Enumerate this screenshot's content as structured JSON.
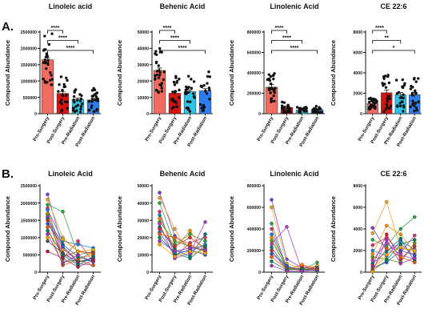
{
  "panel_labels": [
    "A.",
    "B."
  ],
  "colors": {
    "pre_surgery": "#f26b5f",
    "post_surgery": "#d7120f",
    "pre_radiation": "#2ec4e8",
    "post_radiation": "#2d7ff0",
    "dot": "#111111",
    "sig_line": "#000000"
  },
  "chart_data": [
    {
      "type": "bar",
      "title": "Linoleic acid",
      "ylabel": "Compound Abundance",
      "categories": [
        "Pre-Surgery",
        "Post-Surgery",
        "Pre-Radiation",
        "Post-Radiation"
      ],
      "values": [
        1650000,
        620000,
        430000,
        420000
      ],
      "error": [
        60000,
        60000,
        45000,
        50000
      ],
      "ylim": [
        0,
        2500000
      ],
      "yticks": [
        "0",
        "500000",
        "1000000",
        "1500000",
        "2000000",
        "2500000"
      ],
      "significance": [
        {
          "from": 0,
          "to": 1,
          "label": "****"
        },
        {
          "from": 0,
          "to": 2,
          "label": "****"
        },
        {
          "from": 0,
          "to": 3,
          "label": "****"
        }
      ]
    },
    {
      "type": "bar",
      "title": "Behenic Acid",
      "ylabel": "Compound Abundance",
      "categories": [
        "Pre-Surgery",
        "Post-Surgery",
        "Pre-Radiation",
        "Post-Radiation"
      ],
      "values": [
        26500,
        12500,
        13500,
        14000
      ],
      "error": [
        1500,
        1000,
        1000,
        1300
      ],
      "ylim": [
        0,
        50000
      ],
      "yticks": [
        "0",
        "10000",
        "20000",
        "30000",
        "40000",
        "50000"
      ],
      "significance": [
        {
          "from": 0,
          "to": 1,
          "label": "****"
        },
        {
          "from": 0,
          "to": 2,
          "label": "****"
        },
        {
          "from": 0,
          "to": 3,
          "label": "****"
        }
      ]
    },
    {
      "type": "bar",
      "title": "Linolenic Acid",
      "ylabel": "Compound Abundance",
      "categories": [
        "Pre-Surgery",
        "Post-Surgery",
        "Pre-Radiation",
        "Post-Radiation"
      ],
      "values": [
        260000,
        60000,
        35000,
        40000
      ],
      "error": [
        25000,
        15000,
        6000,
        8000
      ],
      "ylim": [
        0,
        800000
      ],
      "yticks": [
        "0",
        "200000",
        "400000",
        "600000",
        "800000"
      ],
      "significance": [
        {
          "from": 0,
          "to": 1,
          "label": "****"
        },
        {
          "from": 0,
          "to": 2,
          "label": "****"
        },
        {
          "from": 0,
          "to": 3,
          "label": "****"
        }
      ]
    },
    {
      "type": "bar",
      "title": "CE 22:6",
      "ylabel": "Compound Abundance",
      "categories": [
        "Pre-Surgery",
        "Post-Surgery",
        "Pre-Radiation",
        "Post-Radiation"
      ],
      "values": [
        1000,
        2050,
        1850,
        1850
      ],
      "error": [
        200,
        280,
        220,
        260
      ],
      "ylim": [
        0,
        8000
      ],
      "yticks": [
        "0",
        "2000",
        "4000",
        "6000",
        "8000"
      ],
      "significance": [
        {
          "from": 0,
          "to": 1,
          "label": "****"
        },
        {
          "from": 0,
          "to": 2,
          "label": "**"
        },
        {
          "from": 0,
          "to": 3,
          "label": "*"
        }
      ]
    },
    {
      "type": "line",
      "title": "Linoleic Acid",
      "ylabel": "Compound Abundance",
      "categories": [
        "Pre-Surgery",
        "Post-Surgery",
        "Pre-Radiation",
        "Post-Radiation"
      ],
      "ylim": [
        0,
        2500000
      ],
      "yticks": [
        "0",
        "500000",
        "1000000",
        "1500000",
        "2000000",
        "2500000"
      ],
      "series": [
        {
          "values": [
            2250000,
            700000,
            300000,
            400000
          ]
        },
        {
          "values": [
            2100000,
            1000000,
            600000,
            500000
          ]
        },
        {
          "values": [
            1950000,
            1750000,
            500000,
            600000
          ]
        },
        {
          "values": [
            1850000,
            400000,
            900000,
            300000
          ]
        },
        {
          "values": [
            1800000,
            900000,
            800000,
            700000
          ]
        },
        {
          "values": [
            1700000,
            650000,
            400000,
            500000
          ]
        },
        {
          "values": [
            1650000,
            300000,
            350000,
            600000
          ]
        },
        {
          "values": [
            1600000,
            550000,
            250000,
            200000
          ]
        },
        {
          "values": [
            1550000,
            800000,
            450000,
            300000
          ]
        },
        {
          "values": [
            1500000,
            450000,
            600000,
            550000
          ]
        },
        {
          "values": [
            1400000,
            750000,
            300000,
            350000
          ]
        },
        {
          "values": [
            1300000,
            200000,
            350000,
            200000
          ]
        },
        {
          "values": [
            1200000,
            500000,
            200000,
            450000
          ]
        },
        {
          "values": [
            1100000,
            250000,
            500000,
            300000
          ]
        },
        {
          "values": [
            1000000,
            950000,
            600000,
            650000
          ]
        },
        {
          "values": [
            900000,
            550000,
            300000,
            400000
          ]
        },
        {
          "values": [
            600000,
            400000,
            150000,
            350000
          ]
        }
      ]
    },
    {
      "type": "line",
      "title": "Behenic Acid",
      "ylabel": "Compound Abundance",
      "categories": [
        "Pre-Surgery",
        "Post-Surgery",
        "Pre-Radiation",
        "Post-Radiation"
      ],
      "ylim": [
        0,
        50000
      ],
      "yticks": [
        "0",
        "10000",
        "20000",
        "30000",
        "40000",
        "50000"
      ],
      "series": [
        {
          "values": [
            46000,
            21000,
            14000,
            15000
          ]
        },
        {
          "values": [
            43000,
            25000,
            10000,
            13000
          ]
        },
        {
          "values": [
            40000,
            16000,
            22000,
            18000
          ]
        },
        {
          "values": [
            35000,
            9000,
            17000,
            20000
          ]
        },
        {
          "values": [
            33000,
            12000,
            12000,
            16000
          ]
        },
        {
          "values": [
            31000,
            14000,
            24000,
            11000
          ]
        },
        {
          "values": [
            29000,
            18000,
            15000,
            12000
          ]
        },
        {
          "values": [
            28000,
            8000,
            11000,
            29000
          ]
        },
        {
          "values": [
            26000,
            13000,
            9000,
            22000
          ]
        },
        {
          "values": [
            25000,
            15000,
            20000,
            14000
          ]
        },
        {
          "values": [
            23000,
            10000,
            13000,
            10000
          ]
        },
        {
          "values": [
            22000,
            20000,
            16000,
            12000
          ]
        },
        {
          "values": [
            20000,
            11000,
            8000,
            15000
          ]
        },
        {
          "values": [
            18000,
            12000,
            14000,
            13000
          ]
        },
        {
          "values": [
            16000,
            9000,
            12000,
            11000
          ]
        }
      ]
    },
    {
      "type": "line",
      "title": "Linolenic Acid",
      "ylabel": "Compound Abundance",
      "categories": [
        "Pre-Surgery",
        "Post-Surgery",
        "Pre-Radiation",
        "Post-Radiation"
      ],
      "ylim": [
        0,
        800000
      ],
      "yticks": [
        "0",
        "200000",
        "400000",
        "600000",
        "800000"
      ],
      "series": [
        {
          "values": [
            670000,
            120000,
            40000,
            50000
          ]
        },
        {
          "values": [
            600000,
            80000,
            30000,
            60000
          ]
        },
        {
          "values": [
            450000,
            40000,
            20000,
            90000
          ]
        },
        {
          "values": [
            400000,
            30000,
            60000,
            30000
          ]
        },
        {
          "values": [
            350000,
            50000,
            20000,
            40000
          ]
        },
        {
          "values": [
            320000,
            20000,
            70000,
            30000
          ]
        },
        {
          "values": [
            290000,
            40000,
            30000,
            20000
          ]
        },
        {
          "values": [
            260000,
            420000,
            10000,
            20000
          ]
        },
        {
          "values": [
            230000,
            30000,
            20000,
            40000
          ]
        },
        {
          "values": [
            200000,
            20000,
            40000,
            30000
          ]
        },
        {
          "values": [
            170000,
            60000,
            10000,
            20000
          ]
        },
        {
          "values": [
            140000,
            30000,
            20000,
            30000
          ]
        },
        {
          "values": [
            100000,
            20000,
            30000,
            10000
          ]
        },
        {
          "values": [
            60000,
            10000,
            10000,
            20000
          ]
        }
      ]
    },
    {
      "type": "line",
      "title": "CE 22:6",
      "ylabel": "Compound Abundance",
      "categories": [
        "Pre-Surgery",
        "Post-Surgery",
        "Pre-Radiation",
        "Post-Radiation"
      ],
      "ylim": [
        0,
        8000
      ],
      "yticks": [
        "0",
        "2000",
        "4000",
        "6000",
        "8000"
      ],
      "series": [
        {
          "values": [
            4100,
            2000,
            2600,
            1500
          ]
        },
        {
          "values": [
            3600,
            6500,
            2200,
            2000
          ]
        },
        {
          "values": [
            3000,
            2400,
            4000,
            5100
          ]
        },
        {
          "values": [
            2500,
            3200,
            1800,
            3400
          ]
        },
        {
          "values": [
            2000,
            1500,
            2900,
            2100
          ]
        },
        {
          "values": [
            1700,
            4300,
            3500,
            1800
          ]
        },
        {
          "values": [
            1400,
            1200,
            900,
            2700
          ]
        },
        {
          "values": [
            1100,
            2700,
            1600,
            1200
          ]
        },
        {
          "values": [
            800,
            1900,
            3100,
            1000
          ]
        },
        {
          "values": [
            600,
            3500,
            1200,
            2400
          ]
        },
        {
          "values": [
            400,
            900,
            2000,
            1600
          ]
        },
        {
          "values": [
            250,
            2200,
            1400,
            900
          ]
        },
        {
          "values": [
            150,
            1100,
            2600,
            3000
          ]
        },
        {
          "values": [
            100,
            3000,
            800,
            1300
          ]
        },
        {
          "values": [
            50,
            1600,
            2300,
            2000
          ]
        }
      ]
    }
  ]
}
